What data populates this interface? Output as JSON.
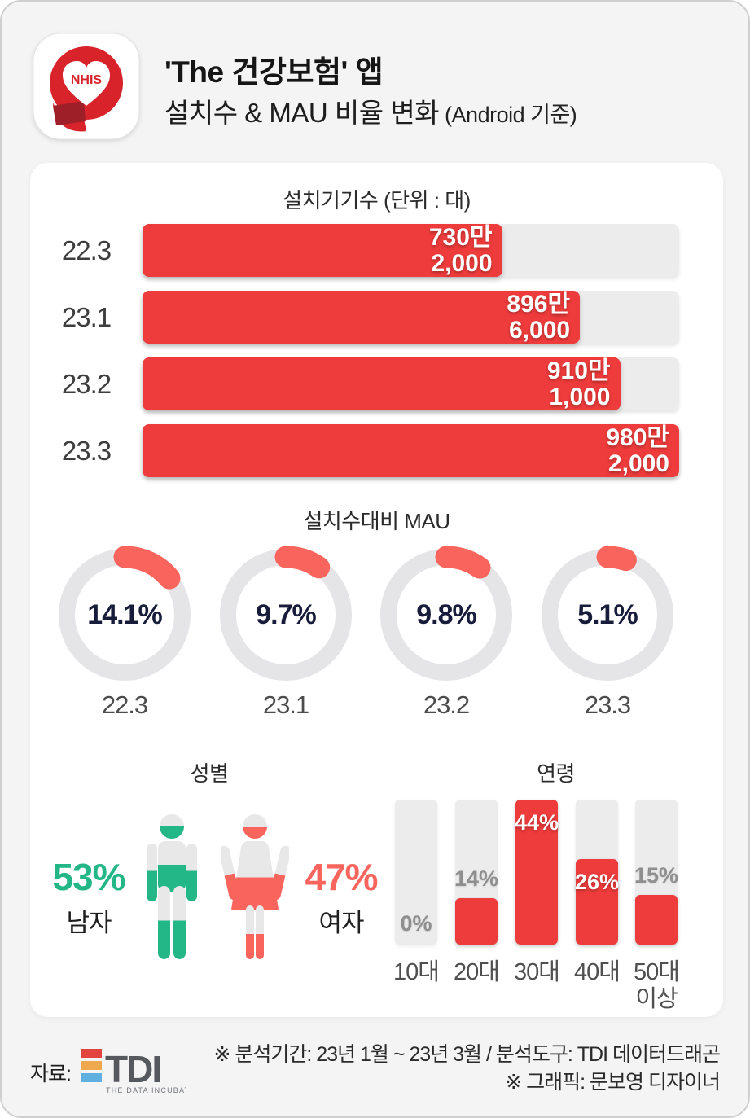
{
  "header": {
    "app_badge": "NHIS",
    "title": "'The 건강보험' 앱",
    "subtitle": "설치수 & MAU 비율 변화",
    "subtitle_note": " (Android 기준)"
  },
  "installs": {
    "title": "설치기기수 (단위 : 대)",
    "rows": [
      {
        "period": "22.3",
        "value_line1": "730만",
        "value_line2": "2,000",
        "devices": 7302000,
        "fill_pct": 67
      },
      {
        "period": "23.1",
        "value_line1": "896만",
        "value_line2": "6,000",
        "devices": 8966000,
        "fill_pct": 81.5
      },
      {
        "period": "23.2",
        "value_line1": "910만",
        "value_line2": "1,000",
        "devices": 9101000,
        "fill_pct": 89
      },
      {
        "period": "23.3",
        "value_line1": "980만",
        "value_line2": "2,000",
        "devices": 9802000,
        "fill_pct": 100
      }
    ]
  },
  "mau": {
    "title": "설치수대비 MAU",
    "items": [
      {
        "period": "22.3",
        "pct": 14.1,
        "label": "14.1%"
      },
      {
        "period": "23.1",
        "pct": 9.7,
        "label": "9.7%"
      },
      {
        "period": "23.2",
        "pct": 9.8,
        "label": "9.8%"
      },
      {
        "period": "23.3",
        "pct": 5.1,
        "label": "5.1%"
      }
    ]
  },
  "gender": {
    "title": "성별",
    "male": {
      "label": "53%",
      "name": "남자",
      "pct": 53
    },
    "female": {
      "label": "47%",
      "name": "여자",
      "pct": 47
    }
  },
  "age": {
    "title": "연령",
    "max_pct": 44,
    "bars": [
      {
        "category": "10대",
        "pct": 0,
        "label": "0%",
        "label_pos": "bottom"
      },
      {
        "category": "20대",
        "pct": 14,
        "label": "14%",
        "label_pos": "above"
      },
      {
        "category": "30대",
        "pct": 44,
        "label": "44%",
        "label_pos": "in"
      },
      {
        "category": "40대",
        "pct": 26,
        "label": "26%",
        "label_pos": "in"
      },
      {
        "category": "50대 이상",
        "pct": 15,
        "label": "15%",
        "label_pos": "above"
      }
    ]
  },
  "footer": {
    "source_label": "자료:",
    "logo_text": "TDI",
    "logo_tagline": "THE DATA INCUBATOR",
    "note_line1": "※ 분석기간: 23년 1월 ~ 23년 3월 / 분석도구: TDI 데이터드래곤",
    "note_line2": "※ 그래픽: 문보영 디자이너"
  },
  "colors": {
    "accent_red": "#ee3b3b",
    "salmon": "#f9655d",
    "green": "#23b686",
    "track_gray": "#ececec",
    "ring_gray": "#e5e5e7",
    "navy_text": "#181c3b"
  },
  "chart_data": [
    {
      "type": "bar",
      "orientation": "horizontal",
      "title": "설치기기수 (단위 : 대)",
      "categories": [
        "22.3",
        "23.1",
        "23.2",
        "23.3"
      ],
      "values": [
        7302000,
        8966000,
        9101000,
        9802000
      ],
      "value_labels": [
        "730만 2,000",
        "896만 6,000",
        "910만 1,000",
        "980만 2,000"
      ],
      "unit": "대",
      "grid": false,
      "legend": "none"
    },
    {
      "type": "pie",
      "variant": "donut-gauge",
      "title": "설치수대비 MAU",
      "categories": [
        "22.3",
        "23.1",
        "23.2",
        "23.3"
      ],
      "values": [
        14.1,
        9.7,
        9.8,
        5.1
      ],
      "unit": "%",
      "start_angle_deg": 0,
      "direction": "clockwise"
    },
    {
      "type": "pie",
      "variant": "pictogram",
      "title": "성별",
      "categories": [
        "남자",
        "여자"
      ],
      "values": [
        53,
        47
      ],
      "unit": "%"
    },
    {
      "type": "bar",
      "orientation": "vertical",
      "title": "연령",
      "categories": [
        "10대",
        "20대",
        "30대",
        "40대",
        "50대 이상"
      ],
      "values": [
        0,
        14,
        44,
        26,
        15
      ],
      "unit": "%",
      "ylim": [
        0,
        44
      ],
      "grid": false
    }
  ]
}
